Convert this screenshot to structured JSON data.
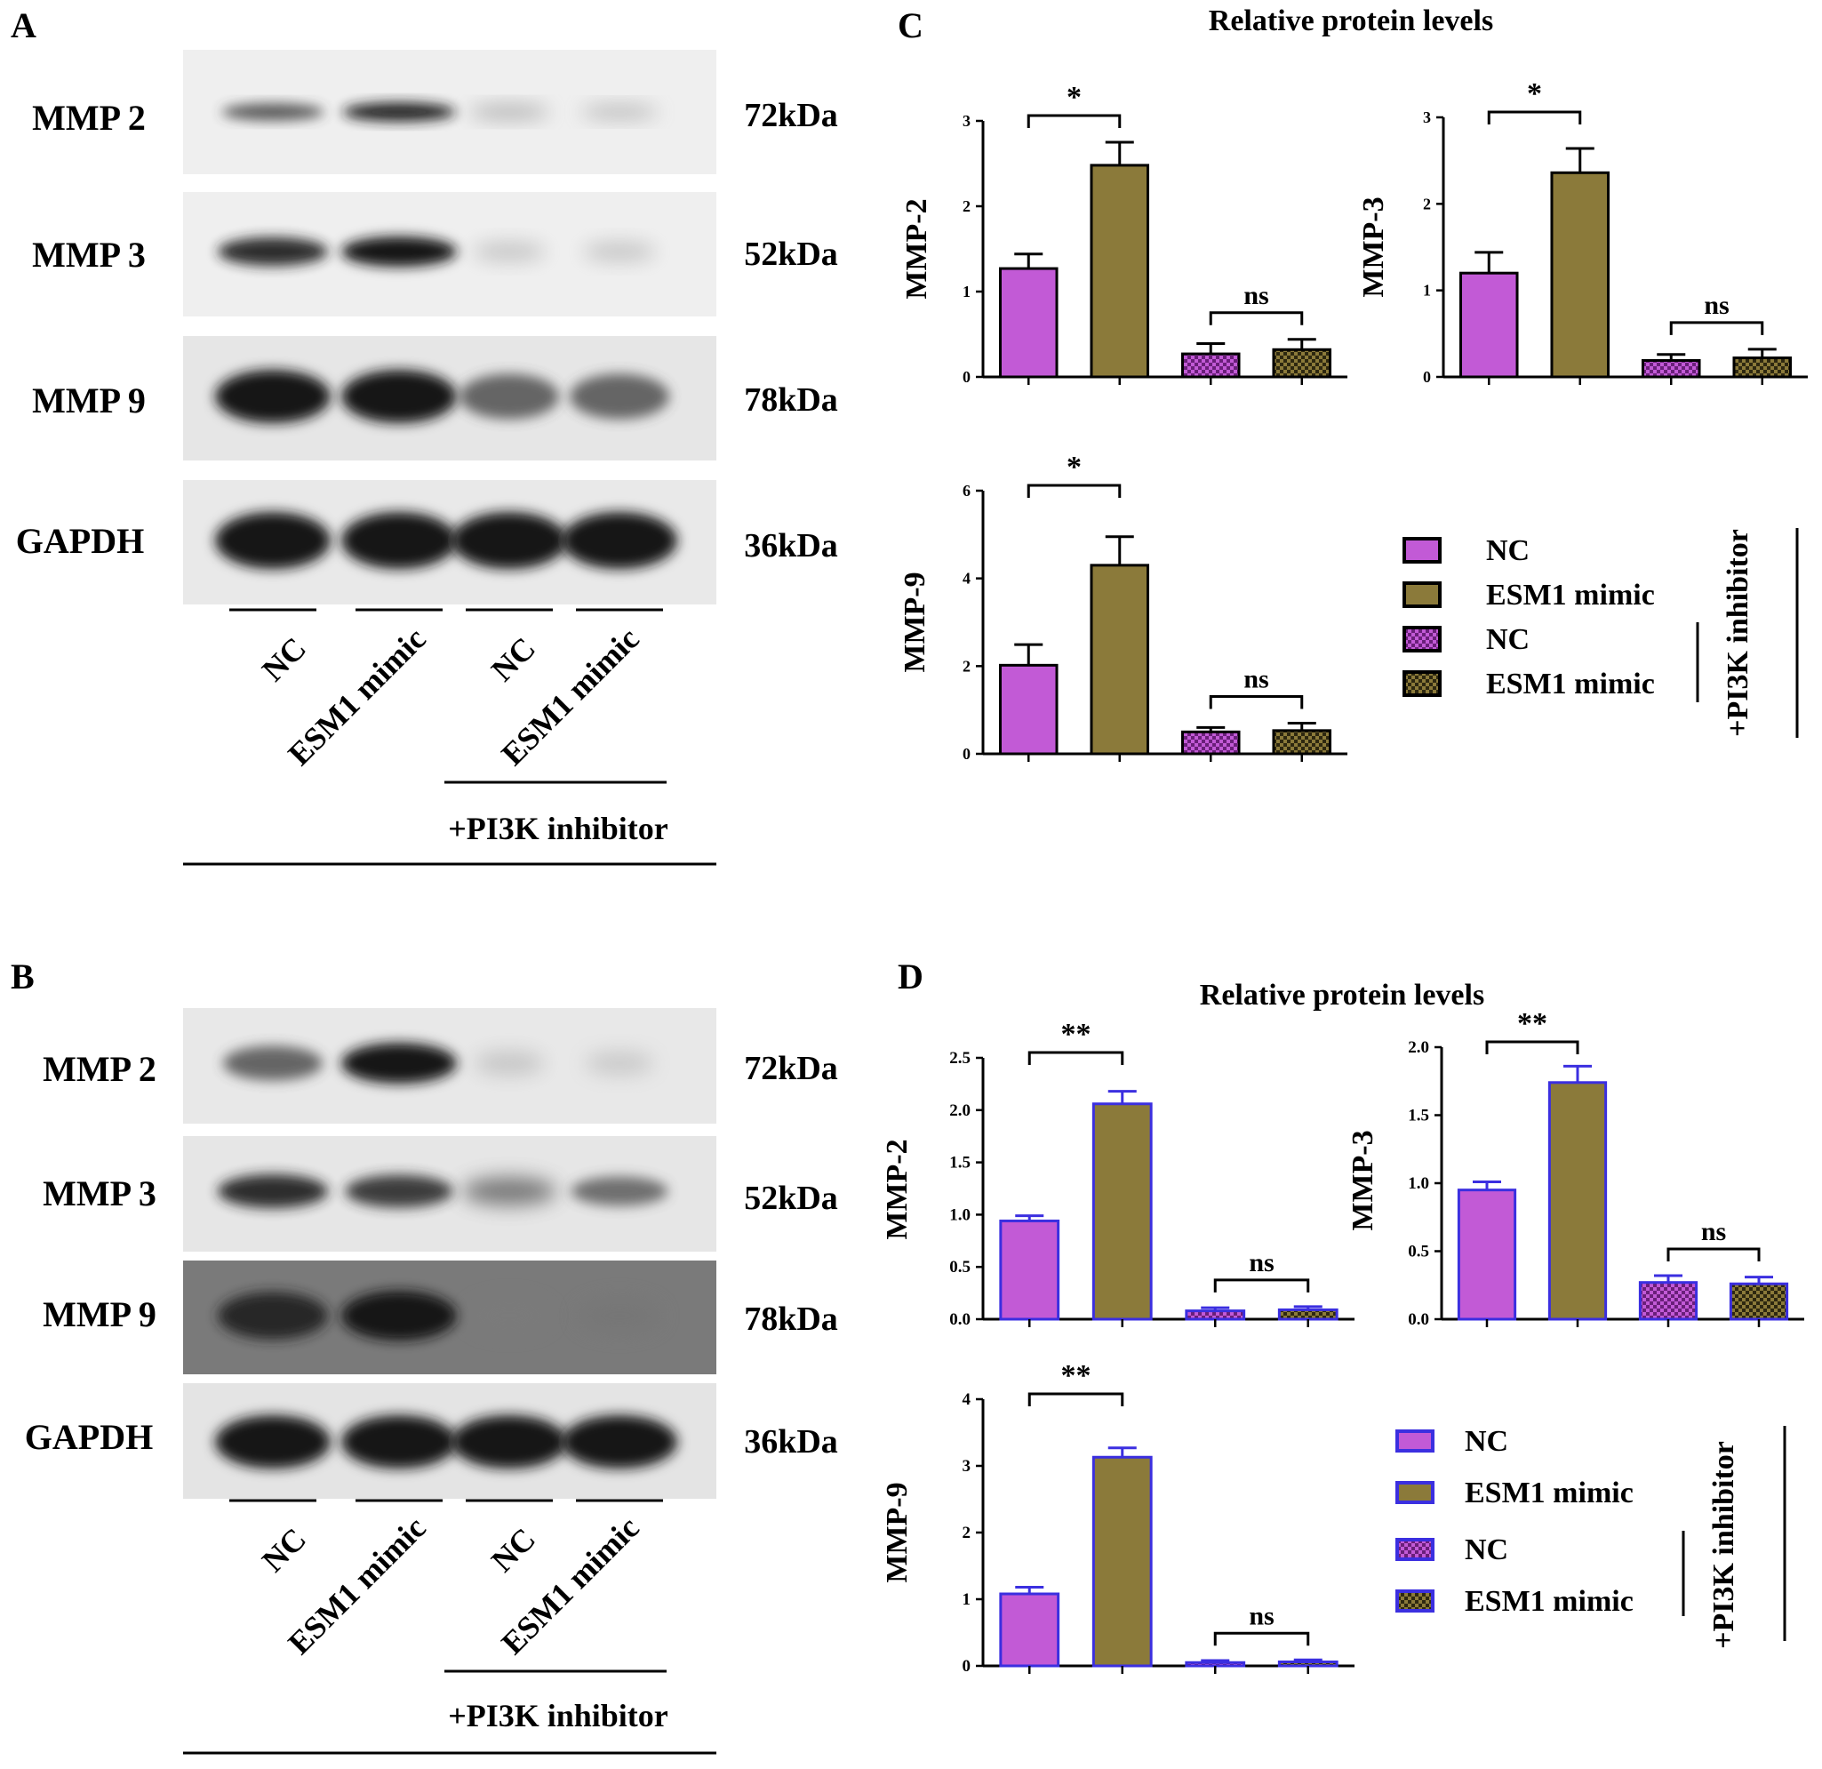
{
  "panel_labels": {
    "a": "A",
    "b": "B",
    "c": "C",
    "d": "D"
  },
  "colors": {
    "nc": "#c25ad6",
    "esm1": "#8b7a3a",
    "axis": "#000000",
    "stroke_c": "#000000",
    "stroke_d": "#3b2fe0"
  },
  "blots": [
    {
      "rows": [
        {
          "name": "MMP 2",
          "kda": "72kDa",
          "intensity": [
            0.75,
            0.95,
            0.35,
            0.3
          ]
        },
        {
          "name": "MMP 3",
          "kda": "52kDa",
          "intensity": [
            0.9,
            1.0,
            0.2,
            0.2
          ]
        },
        {
          "name": "MMP 9",
          "kda": "78kDa",
          "intensity": [
            1.0,
            1.0,
            0.7,
            0.7
          ]
        },
        {
          "name": "GAPDH",
          "kda": "36kDa",
          "intensity": [
            1.0,
            1.0,
            1.0,
            1.0
          ]
        }
      ],
      "lanes": [
        "NC",
        "ESM1 mimic",
        "NC",
        "ESM1 mimic"
      ],
      "treatment": "+PI3K inhibitor"
    },
    {
      "rows": [
        {
          "name": "MMP 2",
          "kda": "72kDa",
          "intensity": [
            0.7,
            1.0,
            0.15,
            0.12
          ]
        },
        {
          "name": "MMP 3",
          "kda": "52kDa",
          "intensity": [
            0.9,
            0.85,
            0.6,
            0.65
          ]
        },
        {
          "name": "MMP 9",
          "kda": "78kDa",
          "intensity": [
            0.9,
            1.0,
            0.35,
            0.4
          ]
        },
        {
          "name": "GAPDH",
          "kda": "36kDa",
          "intensity": [
            1.0,
            1.0,
            1.0,
            1.0
          ]
        }
      ],
      "lanes": [
        "NC",
        "ESM1 mimic",
        "NC",
        "ESM1 mimic"
      ],
      "treatment": "+PI3K inhibitor"
    }
  ],
  "chart_c_title": "Relative protein levels",
  "chart_d_title": "Relative protein levels",
  "legends": [
    {
      "items": [
        "NC",
        "ESM1 mimic",
        "NC",
        "ESM1 mimic"
      ],
      "group_label": "+PI3K inhibitor"
    },
    {
      "items": [
        "NC",
        "ESM1 mimic",
        "NC",
        "ESM1 mimic"
      ],
      "group_label": "+PI3K inhibitor"
    }
  ],
  "chart_data": [
    {
      "panel": "C",
      "type": "bar",
      "ylabel": "MMP-2",
      "ylim": [
        0,
        3
      ],
      "yticks": [
        "0",
        "1",
        "2",
        "3"
      ],
      "values": [
        1.27,
        2.48,
        0.27,
        0.32
      ],
      "errors": [
        0.17,
        0.27,
        0.12,
        0.12
      ],
      "sig": [
        "*",
        "ns"
      ]
    },
    {
      "panel": "C",
      "type": "bar",
      "ylabel": "MMP-3",
      "ylim": [
        0,
        3
      ],
      "yticks": [
        "0",
        "1",
        "2",
        "3"
      ],
      "values": [
        1.2,
        2.36,
        0.19,
        0.22
      ],
      "errors": [
        0.24,
        0.28,
        0.07,
        0.1
      ],
      "sig": [
        "*",
        "ns"
      ]
    },
    {
      "panel": "C",
      "type": "bar",
      "ylabel": "MMP-9",
      "ylim": [
        0,
        6
      ],
      "yticks": [
        "0",
        "2",
        "4",
        "6"
      ],
      "values": [
        2.02,
        4.3,
        0.5,
        0.53
      ],
      "errors": [
        0.47,
        0.65,
        0.1,
        0.17
      ],
      "sig": [
        "*",
        "ns"
      ]
    },
    {
      "panel": "D",
      "type": "bar",
      "ylabel": "MMP-2",
      "ylim": [
        0,
        2.5
      ],
      "yticks": [
        "0.0",
        "0.5",
        "1.0",
        "1.5",
        "2.0",
        "2.5"
      ],
      "values": [
        0.94,
        2.06,
        0.08,
        0.09
      ],
      "errors": [
        0.05,
        0.12,
        0.03,
        0.03
      ],
      "sig": [
        "**",
        "ns"
      ]
    },
    {
      "panel": "D",
      "type": "bar",
      "ylabel": "MMP-3",
      "ylim": [
        0,
        2.0
      ],
      "yticks": [
        "0.0",
        "0.5",
        "1.0",
        "1.5",
        "2.0"
      ],
      "values": [
        0.95,
        1.74,
        0.27,
        0.26
      ],
      "errors": [
        0.06,
        0.12,
        0.05,
        0.05
      ],
      "sig": [
        "**",
        "ns"
      ]
    },
    {
      "panel": "D",
      "type": "bar",
      "ylabel": "MMP-9",
      "ylim": [
        0,
        4
      ],
      "yticks": [
        "0",
        "1",
        "2",
        "3",
        "4"
      ],
      "values": [
        1.08,
        3.13,
        0.05,
        0.06
      ],
      "errors": [
        0.1,
        0.14,
        0.03,
        0.03
      ],
      "sig": [
        "**",
        "ns"
      ]
    }
  ]
}
